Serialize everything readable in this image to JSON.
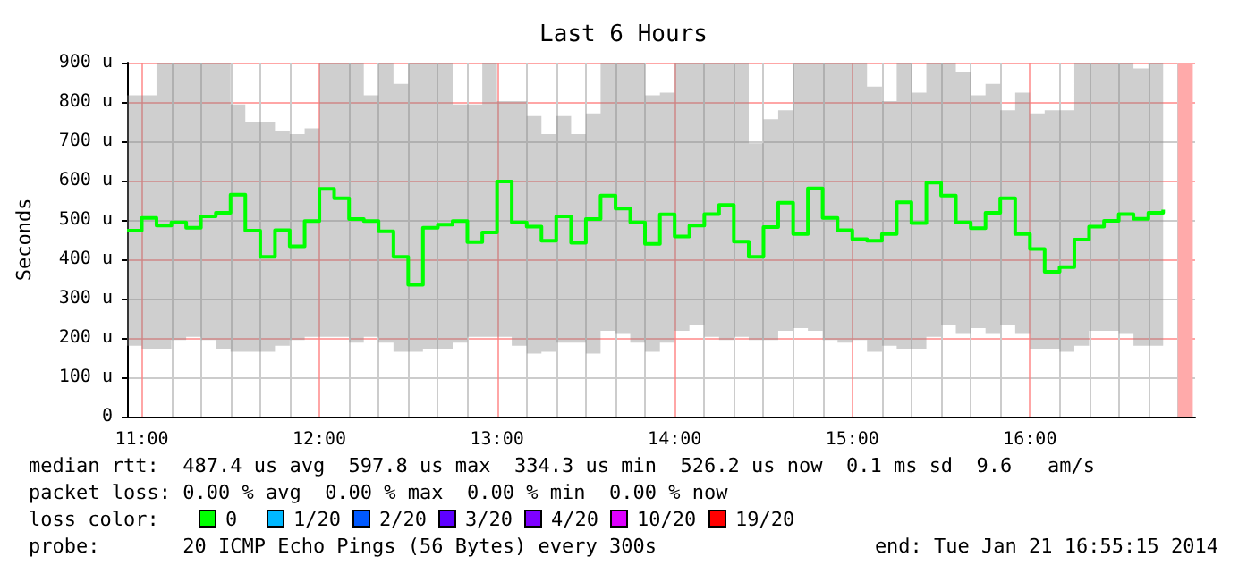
{
  "chart_data": {
    "type": "step",
    "title": "Last 6 Hours",
    "ylabel": "Seconds",
    "x": [
      10.917,
      11,
      11.083,
      11.167,
      11.25,
      11.333,
      11.417,
      11.5,
      11.583,
      11.667,
      11.75,
      11.833,
      11.917,
      12,
      12.083,
      12.167,
      12.25,
      12.333,
      12.417,
      12.5,
      12.583,
      12.667,
      12.75,
      12.833,
      12.917,
      13,
      13.083,
      13.167,
      13.25,
      13.333,
      13.417,
      13.5,
      13.583,
      13.667,
      13.75,
      13.833,
      13.917,
      14,
      14.083,
      14.167,
      14.25,
      14.333,
      14.417,
      14.5,
      14.583,
      14.667,
      14.75,
      14.833,
      14.917,
      15,
      15.083,
      15.167,
      15.25,
      15.333,
      15.417,
      15.5,
      15.583,
      15.667,
      15.75,
      15.833,
      15.917,
      16,
      16.083,
      16.167,
      16.25,
      16.333,
      16.417,
      16.5,
      16.583,
      16.667,
      16.75
    ],
    "series": [
      {
        "color": "#00ff00",
        "values": [
          473,
          505,
          486,
          494,
          480,
          509,
          518,
          564,
          473,
          406,
          474,
          433,
          497,
          579,
          555,
          502,
          497,
          471,
          406,
          335,
          480,
          488,
          497,
          444,
          468,
          598,
          494,
          483,
          447,
          509,
          442,
          502,
          562,
          529,
          494,
          439,
          514,
          458,
          486,
          515,
          538,
          445,
          406,
          482,
          544,
          464,
          580,
          505,
          474,
          451,
          447,
          464,
          545,
          492,
          595,
          562,
          494,
          479,
          518,
          555,
          464,
          426,
          368,
          380,
          450,
          483,
          498,
          515,
          503,
          518,
          526
        ],
        "lower": [
          180,
          173,
          173,
          195,
          203,
          195,
          173,
          165,
          165,
          165,
          180,
          195,
          203,
          203,
          203,
          188,
          203,
          188,
          165,
          165,
          173,
          173,
          188,
          203,
          203,
          203,
          180,
          160,
          165,
          188,
          188,
          160,
          218,
          210,
          188,
          165,
          188,
          218,
          233,
          203,
          195,
          203,
          195,
          195,
          218,
          225,
          218,
          195,
          188,
          195,
          165,
          180,
          173,
          173,
          203,
          233,
          210,
          225,
          210,
          233,
          210,
          173,
          173,
          165,
          180,
          218,
          218,
          210,
          180,
          180,
          195
        ],
        "upper": [
          817,
          817,
          900,
          900,
          900,
          900,
          900,
          794,
          749,
          749,
          726,
          718,
          733,
          900,
          900,
          900,
          817,
          900,
          846,
          900,
          900,
          900,
          794,
          794,
          900,
          802,
          802,
          764,
          718,
          764,
          718,
          771,
          900,
          900,
          900,
          817,
          824,
          900,
          900,
          900,
          900,
          900,
          695,
          756,
          779,
          900,
          900,
          900,
          900,
          900,
          839,
          802,
          900,
          824,
          900,
          900,
          877,
          817,
          846,
          779,
          824,
          771,
          779,
          779,
          900,
          900,
          900,
          900,
          885,
          900,
          900
        ]
      }
    ],
    "xlim": [
      10.917,
      16.93
    ],
    "xticks": [
      {
        "value": 11,
        "label": "11:00"
      },
      {
        "value": 12,
        "label": "12:00"
      },
      {
        "value": 13,
        "label": "13:00"
      },
      {
        "value": 14,
        "label": "14:00"
      },
      {
        "value": 15,
        "label": "15:00"
      },
      {
        "value": 16,
        "label": "16:00"
      }
    ],
    "ylim": [
      0,
      900
    ],
    "yticks": [
      0,
      {
        "value": 100,
        "label": "100 u"
      },
      {
        "value": 200,
        "label": "200 u"
      },
      {
        "value": 300,
        "label": "300 u"
      },
      {
        "value": 400,
        "label": "400 u"
      },
      {
        "value": 500,
        "label": "500 u"
      },
      {
        "value": 600,
        "label": "600 u"
      },
      {
        "value": 700,
        "label": "700 u"
      },
      {
        "value": 800,
        "label": "800 u"
      },
      {
        "value": 900,
        "label": "900 u"
      }
    ],
    "grid": true,
    "line_style": "solid",
    "bands": [
      {
        "axis": "x",
        "from": 16.833,
        "to": 16.917,
        "color": "#ffaaaa"
      }
    ],
    "annotations": [
      "median rtt:  487.4 us avg  597.8 us max  334.3 us min  526.2 us now  0.1 ms sd  9.6   am/s",
      "packet loss: 0.00 % avg  0.00 % max  0.00 % min  0.00 % now",
      "loss color:",
      "0",
      "1/20",
      "2/20",
      "3/20",
      "4/20",
      "10/20",
      "19/20",
      "probe:       20 ICMP Echo Pings (56 Bytes) every 300s",
      "end: Tue Jan 21 16:55:15 2014"
    ]
  }
}
